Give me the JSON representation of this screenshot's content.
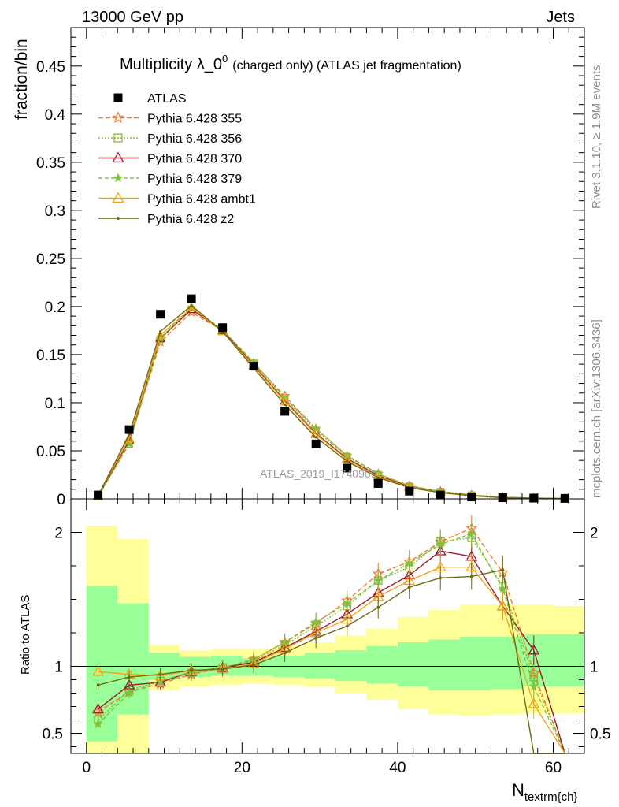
{
  "header": {
    "energy_label": "13000 GeV pp",
    "category_label": "Jets"
  },
  "side": {
    "rivet_label": "Rivet 3.1.10, ≥ 1.9M events",
    "source_label": "mcplots.cern.ch [arXiv:1306.3436]"
  },
  "chart_data": {
    "type": "line",
    "title": "Multiplicity λ_0⁰ (charged only) (ATLAS jet fragmentation)",
    "title_main": "Multiplicity λ_0",
    "title_sup": "0",
    "title_rest": "(charged only) (ATLAS jet fragmentation)",
    "analysis_label": "ATLAS_2019_I1740909",
    "ylabel": "fraction/bin",
    "ratio_ylabel": "Ratio to ATLAS",
    "xlabel": "N",
    "xlabel_sub": "textrm{ch}",
    "xlim": [
      -2,
      64
    ],
    "ylim": [
      0,
      0.49
    ],
    "ratio_ylim": [
      0.35,
      2.25
    ],
    "x_ticks": [
      0,
      20,
      40,
      60
    ],
    "y_ticks": [
      "0",
      "0.05",
      "0.1",
      "0.15",
      "0.2",
      "0.25",
      "0.3",
      "0.35",
      "0.4",
      "0.45"
    ],
    "ratio_y_ticks": [
      "0.5",
      "1",
      "2"
    ],
    "bin_edges": [
      0,
      4,
      8,
      12,
      16,
      20,
      24,
      28,
      32,
      36,
      40,
      44,
      48,
      52,
      56,
      60,
      64
    ],
    "x": [
      1.5,
      5.5,
      9.5,
      13.5,
      17.5,
      21.5,
      25.5,
      29.5,
      33.5,
      37.5,
      41.5,
      45.5,
      49.5,
      53.5,
      57.5,
      61.5
    ],
    "data": {
      "name": "ATLAS",
      "values": [
        0.004,
        0.072,
        0.192,
        0.208,
        0.178,
        0.138,
        0.091,
        0.057,
        0.032,
        0.016,
        0.008,
        0.004,
        0.002,
        0.0012,
        0.0008,
        0.0005
      ]
    },
    "band_inner": [
      [
        0.44,
        1.6
      ],
      [
        0.64,
        1.47
      ],
      [
        0.9,
        1.1
      ],
      [
        0.92,
        1.07
      ],
      [
        0.93,
        1.08
      ],
      [
        0.93,
        1.06
      ],
      [
        0.92,
        1.08
      ],
      [
        0.91,
        1.1
      ],
      [
        0.89,
        1.12
      ],
      [
        0.87,
        1.15
      ],
      [
        0.85,
        1.18
      ],
      [
        0.82,
        1.2
      ],
      [
        0.82,
        1.22
      ],
      [
        0.83,
        1.22
      ],
      [
        0.85,
        1.24
      ],
      [
        0.85,
        1.24
      ]
    ],
    "band_outer": [
      [
        0.3,
        2.05
      ],
      [
        0.3,
        1.95
      ],
      [
        0.82,
        1.16
      ],
      [
        0.85,
        1.12
      ],
      [
        0.86,
        1.13
      ],
      [
        0.87,
        1.13
      ],
      [
        0.86,
        1.15
      ],
      [
        0.85,
        1.18
      ],
      [
        0.8,
        1.23
      ],
      [
        0.75,
        1.28
      ],
      [
        0.68,
        1.37
      ],
      [
        0.64,
        1.42
      ],
      [
        0.63,
        1.46
      ],
      [
        0.64,
        1.46
      ],
      [
        0.65,
        1.46
      ],
      [
        0.65,
        1.45
      ]
    ],
    "series": [
      {
        "name": "Pythia 6.428 355",
        "color": "#f4772a",
        "dash": "6,3",
        "marker": "star-open",
        "values": [
          0.0027,
          0.058,
          0.163,
          0.194,
          0.175,
          0.141,
          0.107,
          0.073,
          0.045,
          0.026,
          0.0138,
          0.0078,
          0.0041,
          0.0017,
          0.0008,
          0.0003
        ],
        "ratio": [
          0.66,
          0.81,
          0.87,
          0.94,
          0.99,
          1.05,
          1.18,
          1.32,
          1.49,
          1.69,
          1.78,
          1.93,
          2.03,
          1.7,
          0.95,
          0.2
        ]
      },
      {
        "name": "Pythia 6.428 356",
        "color": "#8db833",
        "dash": "2,2",
        "marker": "square-open",
        "values": [
          0.0024,
          0.057,
          0.166,
          0.197,
          0.176,
          0.141,
          0.104,
          0.071,
          0.044,
          0.025,
          0.0132,
          0.0075,
          0.0039,
          0.0016,
          0.0007,
          0.0002
        ],
        "ratio": [
          0.6,
          0.82,
          0.89,
          0.95,
          0.99,
          1.04,
          1.16,
          1.3,
          1.45,
          1.64,
          1.74,
          1.93,
          1.96,
          1.6,
          0.92,
          0.2
        ]
      },
      {
        "name": "Pythia 6.428 370",
        "color": "#9a1d2e",
        "dash": "",
        "marker": "triangle-open",
        "values": [
          0.0028,
          0.061,
          0.167,
          0.197,
          0.175,
          0.139,
          0.102,
          0.068,
          0.042,
          0.024,
          0.0128,
          0.0072,
          0.0037,
          0.0015,
          0.0009,
          0.0003
        ],
        "ratio": [
          0.68,
          0.86,
          0.88,
          0.96,
          0.99,
          1.03,
          1.14,
          1.26,
          1.39,
          1.55,
          1.68,
          1.86,
          1.82,
          1.45,
          1.12,
          0.2
        ]
      },
      {
        "name": "Pythia 6.428 379",
        "color": "#7fc241",
        "dash": "5,3",
        "marker": "star-filled",
        "values": [
          0.0023,
          0.057,
          0.167,
          0.199,
          0.176,
          0.142,
          0.105,
          0.073,
          0.045,
          0.026,
          0.0136,
          0.0076,
          0.004,
          0.0016,
          0.0007,
          0.0002
        ],
        "ratio": [
          0.57,
          0.8,
          0.89,
          0.96,
          0.99,
          1.05,
          1.18,
          1.33,
          1.47,
          1.64,
          1.77,
          1.91,
          1.99,
          1.58,
          0.85,
          0.2
        ]
      },
      {
        "name": "Pythia 6.428 ambt1",
        "color": "#f0a417",
        "dash": "",
        "marker": "triangle-open",
        "values": [
          0.0038,
          0.063,
          0.17,
          0.199,
          0.174,
          0.138,
          0.101,
          0.067,
          0.041,
          0.023,
          0.0121,
          0.0068,
          0.0034,
          0.0013,
          0.0006,
          0.0002
        ],
        "ratio": [
          0.96,
          0.94,
          0.93,
          0.97,
          0.98,
          1.02,
          1.13,
          1.25,
          1.35,
          1.52,
          1.64,
          1.74,
          1.74,
          1.45,
          0.72,
          0.2
        ]
      },
      {
        "name": "Pythia 6.428 z2",
        "color": "#6c6c14",
        "dash": "",
        "marker": "dot",
        "values": [
          0.0034,
          0.067,
          0.174,
          0.201,
          0.174,
          0.136,
          0.098,
          0.064,
          0.039,
          0.022,
          0.0117,
          0.0064,
          0.0032,
          0.0012,
          0.0004,
          0.0001
        ],
        "ratio": [
          0.86,
          0.92,
          0.94,
          0.97,
          0.98,
          1.01,
          1.1,
          1.21,
          1.3,
          1.44,
          1.59,
          1.66,
          1.67,
          1.72,
          0.3,
          0.2
        ]
      }
    ]
  }
}
